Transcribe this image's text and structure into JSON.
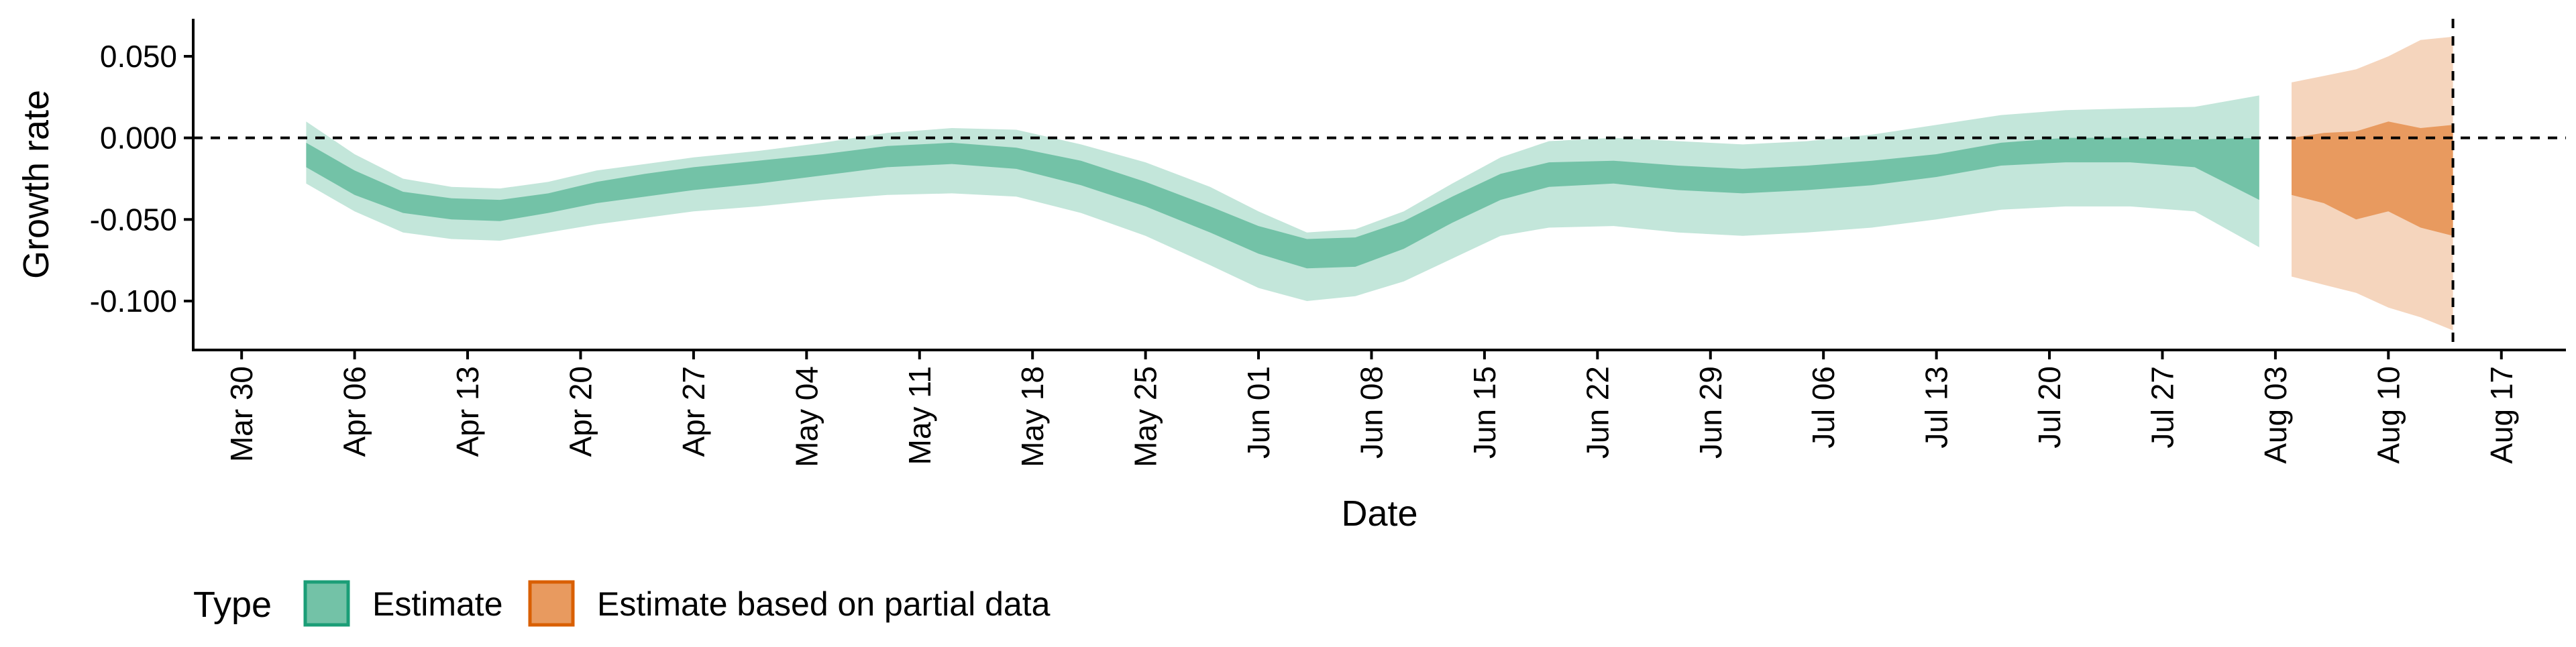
{
  "chart_data": {
    "type": "area",
    "title": "",
    "xlabel": "Date",
    "ylabel": "Growth rate",
    "x_axis": {
      "type": "date",
      "range": [
        "2020-03-27",
        "2020-08-21"
      ],
      "tick_labels": [
        "Mar 30",
        "Apr 06",
        "Apr 13",
        "Apr 20",
        "Apr 27",
        "May 04",
        "May 11",
        "May 18",
        "May 25",
        "Jun 01",
        "Jun 08",
        "Jun 15",
        "Jun 22",
        "Jun 29",
        "Jul 06",
        "Jul 13",
        "Jul 20",
        "Jul 27",
        "Aug 03",
        "Aug 10",
        "Aug 17"
      ],
      "tick_dates": [
        "2020-03-30",
        "2020-04-06",
        "2020-04-13",
        "2020-04-20",
        "2020-04-27",
        "2020-05-04",
        "2020-05-11",
        "2020-05-18",
        "2020-05-25",
        "2020-06-01",
        "2020-06-08",
        "2020-06-15",
        "2020-06-22",
        "2020-06-29",
        "2020-07-06",
        "2020-07-13",
        "2020-07-20",
        "2020-07-27",
        "2020-08-03",
        "2020-08-10",
        "2020-08-17"
      ],
      "tick_label_rotation": "vertical"
    },
    "y_axis": {
      "range": [
        -0.13,
        0.073
      ],
      "tick_values": [
        0.05,
        0.0,
        -0.05,
        -0.1
      ],
      "tick_labels": [
        "0.050",
        "0.000",
        "-0.050",
        "-0.100"
      ]
    },
    "grid": false,
    "reference_lines": [
      {
        "orientation": "horizontal",
        "y": 0.0,
        "style": "dashed"
      },
      {
        "orientation": "vertical",
        "x": "2020-08-14",
        "style": "dashed"
      }
    ],
    "legend": {
      "title": "Type",
      "placement": "bottom-left",
      "entries": [
        {
          "label": "Estimate",
          "fill": "#73c2a7",
          "border": "#1b9e77"
        },
        {
          "label": "Estimate based on partial data",
          "fill": "#e89a5f",
          "border": "#d95f02"
        }
      ]
    },
    "series": [
      {
        "name": "Estimate",
        "inner_color": "#73c2a7",
        "outer_color": "#c3e6da",
        "points": [
          {
            "x": "2020-04-03",
            "outer": [
              -0.028,
              0.01
            ],
            "inner": [
              -0.018,
              -0.003
            ]
          },
          {
            "x": "2020-04-06",
            "outer": [
              -0.045,
              -0.01
            ],
            "inner": [
              -0.035,
              -0.02
            ]
          },
          {
            "x": "2020-04-09",
            "outer": [
              -0.058,
              -0.025
            ],
            "inner": [
              -0.046,
              -0.033
            ]
          },
          {
            "x": "2020-04-12",
            "outer": [
              -0.062,
              -0.03
            ],
            "inner": [
              -0.05,
              -0.037
            ]
          },
          {
            "x": "2020-04-15",
            "outer": [
              -0.063,
              -0.031
            ],
            "inner": [
              -0.051,
              -0.038
            ]
          },
          {
            "x": "2020-04-18",
            "outer": [
              -0.058,
              -0.027
            ],
            "inner": [
              -0.046,
              -0.034
            ]
          },
          {
            "x": "2020-04-21",
            "outer": [
              -0.053,
              -0.02
            ],
            "inner": [
              -0.04,
              -0.027
            ]
          },
          {
            "x": "2020-04-24",
            "outer": [
              -0.049,
              -0.016
            ],
            "inner": [
              -0.036,
              -0.022
            ]
          },
          {
            "x": "2020-04-27",
            "outer": [
              -0.045,
              -0.012
            ],
            "inner": [
              -0.032,
              -0.018
            ]
          },
          {
            "x": "2020-05-01",
            "outer": [
              -0.042,
              -0.008
            ],
            "inner": [
              -0.028,
              -0.014
            ]
          },
          {
            "x": "2020-05-05",
            "outer": [
              -0.038,
              -0.003
            ],
            "inner": [
              -0.023,
              -0.01
            ]
          },
          {
            "x": "2020-05-09",
            "outer": [
              -0.035,
              0.003
            ],
            "inner": [
              -0.018,
              -0.005
            ]
          },
          {
            "x": "2020-05-13",
            "outer": [
              -0.034,
              0.006
            ],
            "inner": [
              -0.016,
              -0.003
            ]
          },
          {
            "x": "2020-05-17",
            "outer": [
              -0.036,
              0.005
            ],
            "inner": [
              -0.019,
              -0.006
            ]
          },
          {
            "x": "2020-05-21",
            "outer": [
              -0.046,
              -0.004
            ],
            "inner": [
              -0.029,
              -0.014
            ]
          },
          {
            "x": "2020-05-25",
            "outer": [
              -0.06,
              -0.015
            ],
            "inner": [
              -0.042,
              -0.027
            ]
          },
          {
            "x": "2020-05-29",
            "outer": [
              -0.078,
              -0.03
            ],
            "inner": [
              -0.058,
              -0.042
            ]
          },
          {
            "x": "2020-06-01",
            "outer": [
              -0.092,
              -0.045
            ],
            "inner": [
              -0.071,
              -0.054
            ]
          },
          {
            "x": "2020-06-04",
            "outer": [
              -0.1,
              -0.058
            ],
            "inner": [
              -0.08,
              -0.062
            ]
          },
          {
            "x": "2020-06-07",
            "outer": [
              -0.097,
              -0.056
            ],
            "inner": [
              -0.079,
              -0.061
            ]
          },
          {
            "x": "2020-06-10",
            "outer": [
              -0.088,
              -0.045
            ],
            "inner": [
              -0.068,
              -0.051
            ]
          },
          {
            "x": "2020-06-13",
            "outer": [
              -0.074,
              -0.028
            ],
            "inner": [
              -0.052,
              -0.036
            ]
          },
          {
            "x": "2020-06-16",
            "outer": [
              -0.06,
              -0.012
            ],
            "inner": [
              -0.038,
              -0.022
            ]
          },
          {
            "x": "2020-06-19",
            "outer": [
              -0.055,
              -0.002
            ],
            "inner": [
              -0.03,
              -0.015
            ]
          },
          {
            "x": "2020-06-23",
            "outer": [
              -0.054,
              0.0
            ],
            "inner": [
              -0.028,
              -0.014
            ]
          },
          {
            "x": "2020-06-27",
            "outer": [
              -0.058,
              -0.002
            ],
            "inner": [
              -0.032,
              -0.017
            ]
          },
          {
            "x": "2020-07-01",
            "outer": [
              -0.06,
              -0.004
            ],
            "inner": [
              -0.034,
              -0.019
            ]
          },
          {
            "x": "2020-07-05",
            "outer": [
              -0.058,
              -0.002
            ],
            "inner": [
              -0.032,
              -0.017
            ]
          },
          {
            "x": "2020-07-09",
            "outer": [
              -0.055,
              0.002
            ],
            "inner": [
              -0.029,
              -0.014
            ]
          },
          {
            "x": "2020-07-13",
            "outer": [
              -0.05,
              0.008
            ],
            "inner": [
              -0.024,
              -0.01
            ]
          },
          {
            "x": "2020-07-17",
            "outer": [
              -0.044,
              0.014
            ],
            "inner": [
              -0.017,
              -0.003
            ]
          },
          {
            "x": "2020-07-21",
            "outer": [
              -0.042,
              0.017
            ],
            "inner": [
              -0.015,
              0.0
            ]
          },
          {
            "x": "2020-07-25",
            "outer": [
              -0.042,
              0.018
            ],
            "inner": [
              -0.015,
              0.0
            ]
          },
          {
            "x": "2020-07-29",
            "outer": [
              -0.045,
              0.019
            ],
            "inner": [
              -0.018,
              -0.001
            ]
          },
          {
            "x": "2020-08-02",
            "outer": [
              -0.067,
              0.026
            ],
            "inner": [
              -0.038,
              0.0
            ]
          }
        ]
      },
      {
        "name": "Estimate based on partial data",
        "inner_color": "#e89a5f",
        "outer_color": "#f5d5bd",
        "points": [
          {
            "x": "2020-08-04",
            "outer": [
              -0.085,
              0.034
            ],
            "inner": [
              -0.035,
              0.0
            ]
          },
          {
            "x": "2020-08-06",
            "outer": [
              -0.09,
              0.038
            ],
            "inner": [
              -0.04,
              0.003
            ]
          },
          {
            "x": "2020-08-08",
            "outer": [
              -0.095,
              0.042
            ],
            "inner": [
              -0.05,
              0.004
            ]
          },
          {
            "x": "2020-08-10",
            "outer": [
              -0.104,
              0.05
            ],
            "inner": [
              -0.045,
              0.01
            ]
          },
          {
            "x": "2020-08-12",
            "outer": [
              -0.11,
              0.06
            ],
            "inner": [
              -0.055,
              0.006
            ]
          },
          {
            "x": "2020-08-14",
            "outer": [
              -0.118,
              0.062
            ],
            "inner": [
              -0.06,
              0.008
            ]
          }
        ]
      }
    ]
  }
}
